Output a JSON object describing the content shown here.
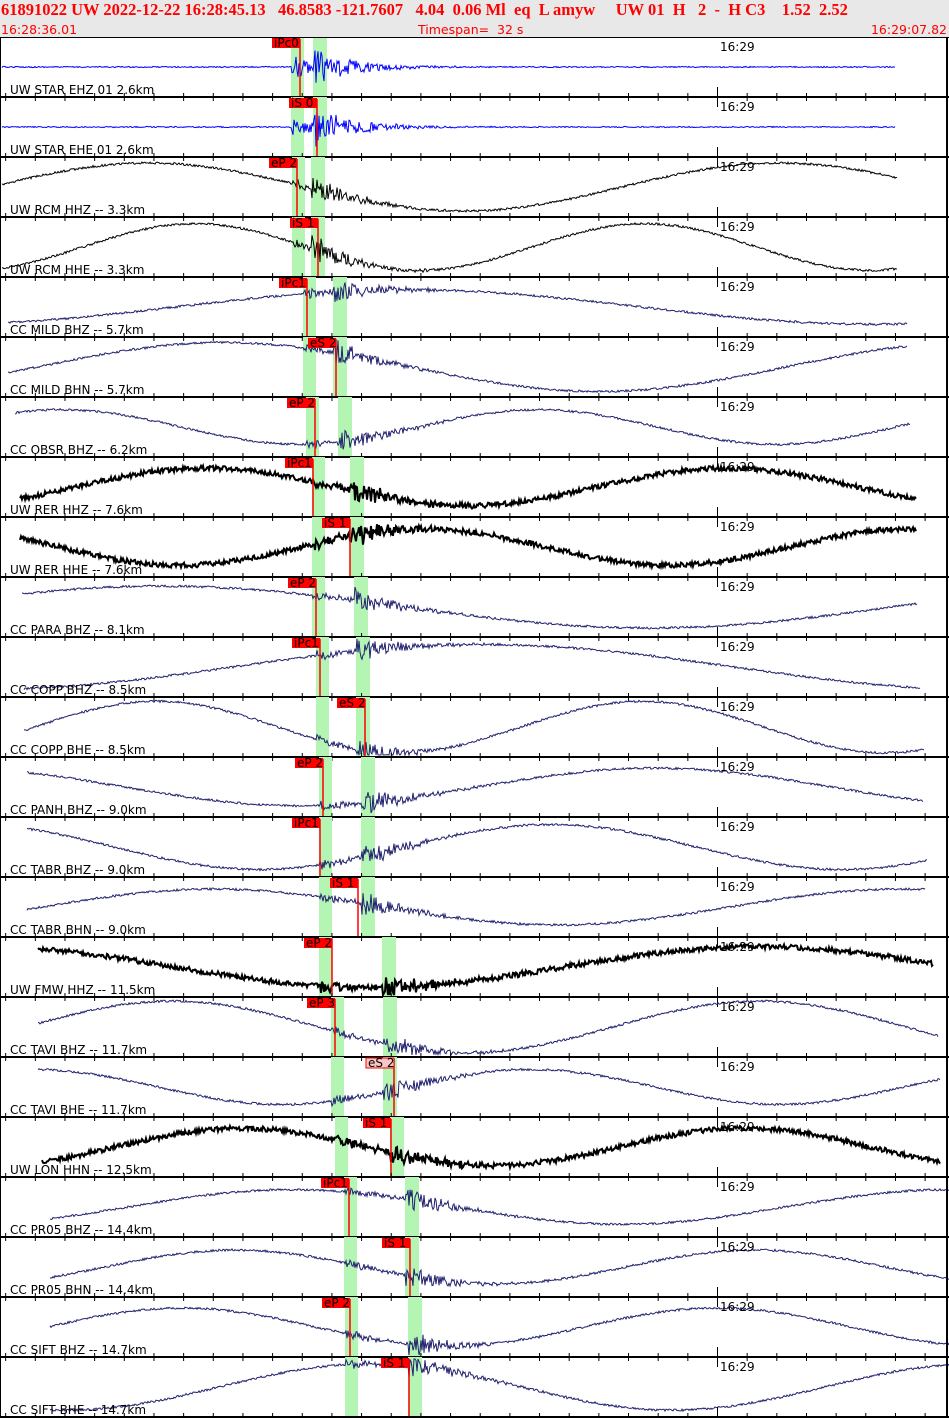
{
  "header": {
    "title": "61891022 UW 2022-12-22 16:28:45.13   46.8583 -121.7607   4.04  0.06 Ml  eq  L amyw     UW 01  H   2  -  H C3    1.52  2.52",
    "start_time": "16:28:36.01",
    "timespan": "Timespan=  32 s",
    "end_time": "16:29:07.82"
  },
  "minute_marker": "16:29",
  "colors": {
    "pick": "#ff0000",
    "pick_pale": "#f8c8c8",
    "window": "#b4f5b4",
    "blue": "#0000ff",
    "black": "#000000",
    "navy": "#20206e"
  },
  "traces": [
    {
      "label": "UW STAR EHZ 01 2.6km",
      "pick": "iPc0",
      "color": "blue"
    },
    {
      "label": "UW STAR EHE 01 2.6km",
      "pick": "iS 0",
      "color": "blue"
    },
    {
      "label": "UW RCM HHZ -- 3.3km",
      "pick": "eP 2",
      "color": "black"
    },
    {
      "label": "UW RCM HHE -- 3.3km",
      "pick": "iS 1",
      "color": "black"
    },
    {
      "label": "CC MILD BHZ -- 5.7km",
      "pick": "iPc1",
      "color": "navy"
    },
    {
      "label": "CC MILD BHN -- 5.7km",
      "pick": "eS 2",
      "color": "navy"
    },
    {
      "label": "CC OBSR BHZ -- 6.2km",
      "pick": "eP 2",
      "color": "navy"
    },
    {
      "label": "UW RER HHZ -- 7.6km",
      "pick": "iPc1",
      "color": "black"
    },
    {
      "label": "UW RER HHE -- 7.6km",
      "pick": "iS 1",
      "color": "black"
    },
    {
      "label": "CC PARA BHZ -- 8.1km",
      "pick": "eP 2",
      "color": "navy"
    },
    {
      "label": "CC COPP BHZ -- 8.5km",
      "pick": "iPc1",
      "color": "navy"
    },
    {
      "label": "CC COPP BHE -- 8.5km",
      "pick": "eS 2",
      "color": "navy"
    },
    {
      "label": "CC PANH BHZ -- 9.0km",
      "pick": "eP 2",
      "color": "navy"
    },
    {
      "label": "CC TABR BHZ -- 9.0km",
      "pick": "iPc1",
      "color": "navy"
    },
    {
      "label": "CC TABR BHN -- 9.0km",
      "pick": "iS 1",
      "color": "navy"
    },
    {
      "label": "UW FMW HHZ -- 11.5km",
      "pick": "eP 2",
      "color": "black"
    },
    {
      "label": "CC TAVI BHZ -- 11.7km",
      "pick": "eP 3",
      "color": "navy"
    },
    {
      "label": "CC TAVI BHE -- 11.7km",
      "pick": "eS 2",
      "color": "navy",
      "pale": true
    },
    {
      "label": "UW LON HHN -- 12.5km",
      "pick": "iS 1",
      "color": "black"
    },
    {
      "label": "CC PR05 BHZ -- 14.4km",
      "pick": "iPc1",
      "color": "navy"
    },
    {
      "label": "CC PR05 BHN -- 14.4km",
      "pick": "iS 1",
      "color": "navy"
    },
    {
      "label": "CC SIFT BHZ -- 14.7km",
      "pick": "eP 2",
      "color": "navy"
    },
    {
      "label": "CC SIFT BHE -- 14.7km",
      "pick": "iS 1",
      "color": "navy"
    }
  ]
}
